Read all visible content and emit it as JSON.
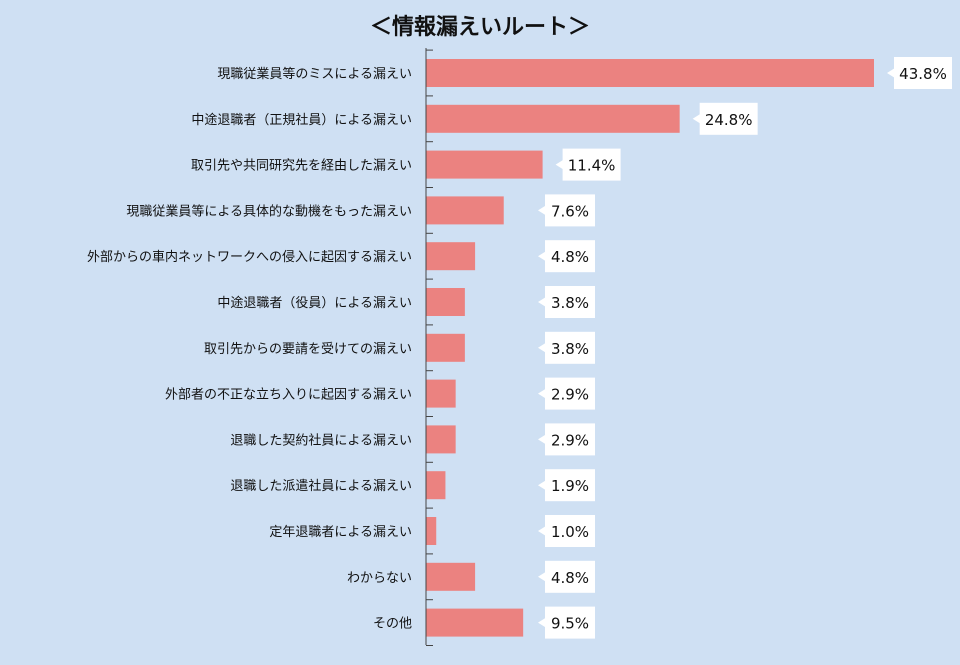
{
  "chart_data": {
    "type": "bar",
    "orientation": "horizontal",
    "title": "＜情報漏えいルート＞",
    "xlabel": "",
    "ylabel": "",
    "xlim": [
      0,
      45
    ],
    "grid": false,
    "legend": "none",
    "categories": [
      "現職従業員等のミスによる漏えい",
      "中途退職者（正規社員）による漏えい",
      "取引先や共同研究先を経由した漏えい",
      "現職従業員等による具体的な動機をもった漏えい",
      "外部からの車内ネットワークへの侵入に起因する漏えい",
      "中途退職者（役員）による漏えい",
      "取引先からの要請を受けての漏えい",
      "外部者の不正な立ち入りに起因する漏えい",
      "退職した契約社員による漏えい",
      "退職した派遣社員による漏えい",
      "定年退職者による漏えい",
      "わからない",
      "その他"
    ],
    "values": [
      43.8,
      24.8,
      11.4,
      7.6,
      4.8,
      3.8,
      3.8,
      2.9,
      2.9,
      1.9,
      1.0,
      4.8,
      9.5
    ],
    "value_labels": [
      "43.8%",
      "24.8%",
      "11.4%",
      "7.6%",
      "4.8%",
      "3.8%",
      "3.8%",
      "2.9%",
      "2.9%",
      "1.9%",
      "1.0%",
      "4.8%",
      "9.5%"
    ],
    "colors": {
      "bar": "#eb8280",
      "background": "#cfe0f3",
      "axis": "#444444",
      "label_box": "#ffffff"
    }
  }
}
